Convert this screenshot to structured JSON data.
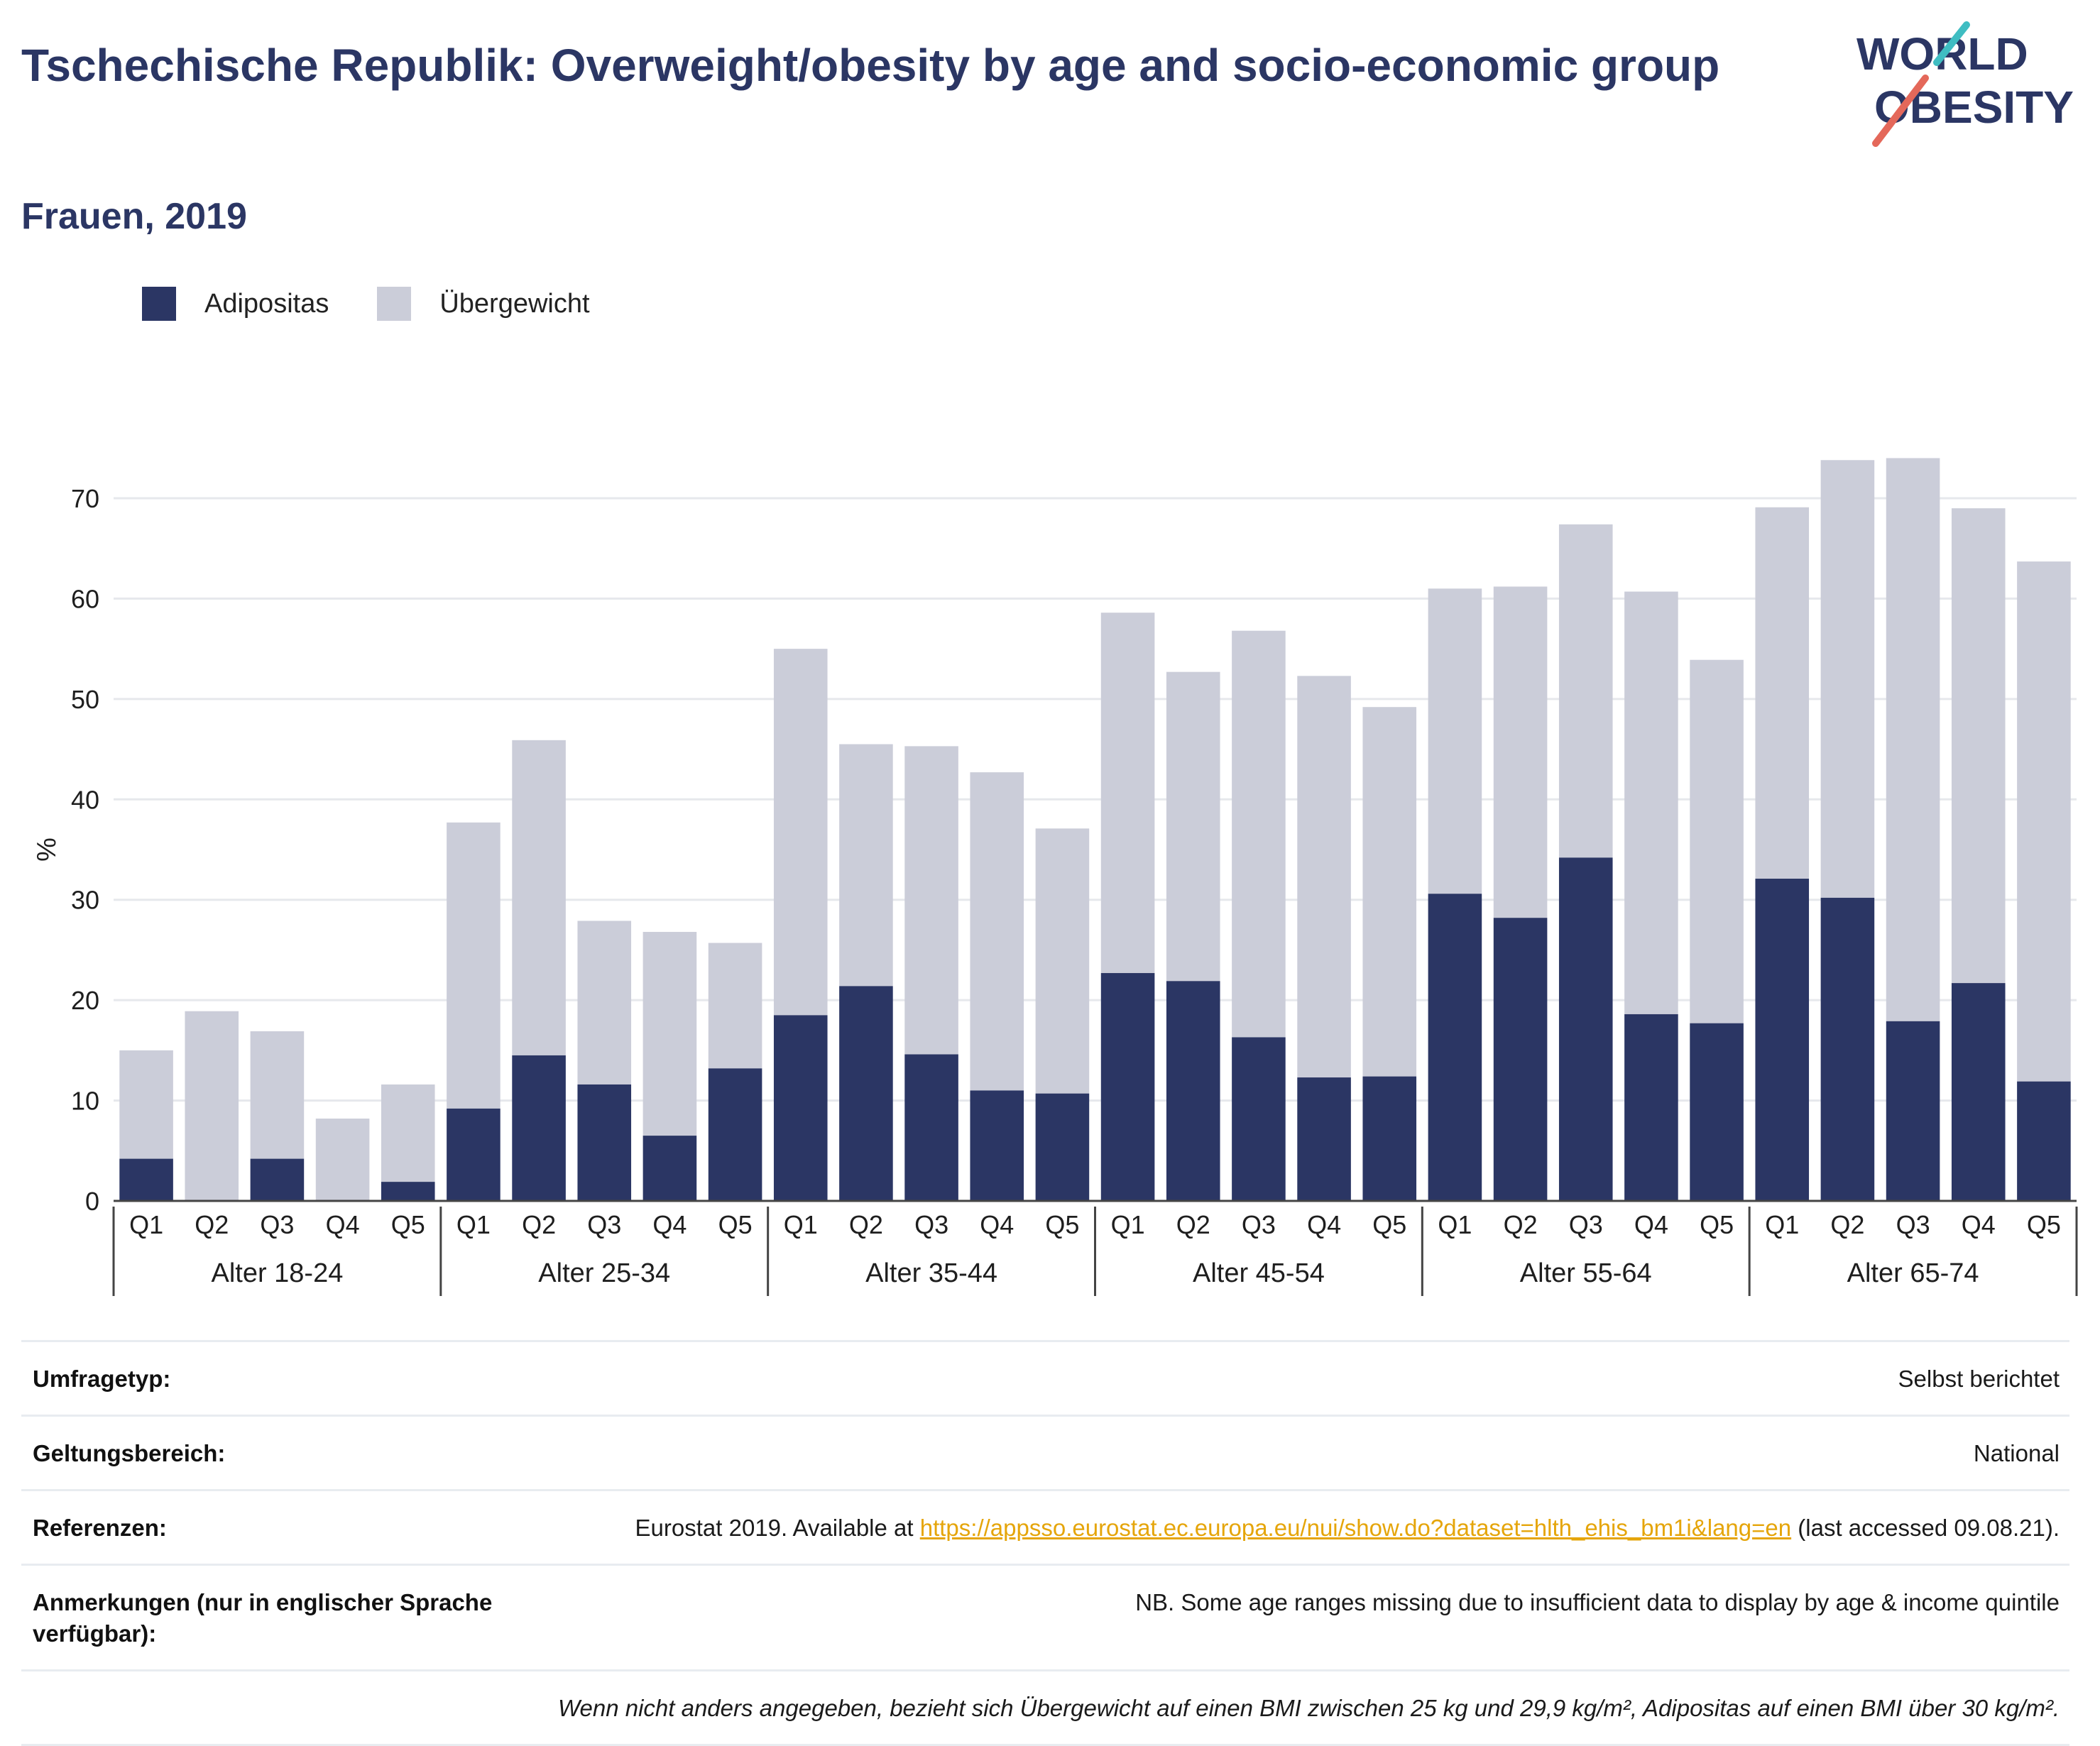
{
  "header": {
    "title": "Tschechische Republik: Overweight/obesity by age and socio-economic group",
    "subtitle": "Frauen, 2019"
  },
  "logo": {
    "line1": "WORLD",
    "line2": "OBESITY"
  },
  "legend": [
    {
      "label": "Adipositas",
      "color": "#2b3664"
    },
    {
      "label": "Übergewicht",
      "color": "#cbcdd9"
    }
  ],
  "chart_data": {
    "type": "bar",
    "stacked": true,
    "ylabel": "%",
    "ylim": [
      0,
      80
    ],
    "yticks": [
      0,
      10,
      20,
      30,
      40,
      50,
      60,
      70
    ],
    "grid": true,
    "legend_position": "top-left",
    "groups": [
      "Alter 18-24",
      "Alter 25-34",
      "Alter 35-44",
      "Alter 45-54",
      "Alter 55-64",
      "Alter 65-74"
    ],
    "subcategories": [
      "Q1",
      "Q2",
      "Q3",
      "Q4",
      "Q5"
    ],
    "series": [
      {
        "name": "Adipositas",
        "color": "#2b3664",
        "values": [
          4.2,
          0,
          4.2,
          0,
          1.9,
          9.2,
          14.5,
          11.6,
          6.5,
          13.2,
          18.5,
          21.4,
          14.6,
          11.0,
          10.7,
          22.7,
          21.9,
          16.3,
          12.3,
          12.4,
          30.6,
          28.2,
          34.2,
          18.6,
          17.7,
          32.1,
          30.2,
          17.9,
          21.7,
          11.9
        ]
      },
      {
        "name": "Übergewicht",
        "color": "#cbcdd9",
        "values": [
          10.8,
          18.9,
          12.7,
          8.2,
          9.7,
          28.5,
          31.4,
          16.3,
          20.3,
          12.5,
          36.5,
          24.1,
          30.7,
          31.7,
          26.4,
          35.9,
          30.8,
          40.5,
          40.0,
          36.8,
          30.4,
          33.0,
          33.2,
          42.1,
          36.2,
          37.0,
          43.6,
          56.1,
          47.3,
          51.8
        ]
      }
    ]
  },
  "info": [
    {
      "label": "Umfragetyp:",
      "value": "Selbst berichtet"
    },
    {
      "label": "Geltungsbereich:",
      "value": "National"
    },
    {
      "label": "Referenzen:",
      "value_prefix": "Eurostat 2019. Available at ",
      "link": "https://appsso.eurostat.ec.europa.eu/nui/show.do?dataset=hlth_ehis_bm1i&lang=en",
      "value_suffix": " (last accessed 09.08.21)."
    },
    {
      "label": "Anmerkungen (nur in englischer Sprache verfügbar):",
      "value": "NB. Some age ranges missing due to insufficient data to display by age & income quintile"
    }
  ],
  "footnote": "Wenn nicht anders angegeben, bezieht sich Übergewicht auf einen BMI zwischen 25 kg und 29,9 kg/m², Adipositas auf einen BMI über 30 kg/m²."
}
